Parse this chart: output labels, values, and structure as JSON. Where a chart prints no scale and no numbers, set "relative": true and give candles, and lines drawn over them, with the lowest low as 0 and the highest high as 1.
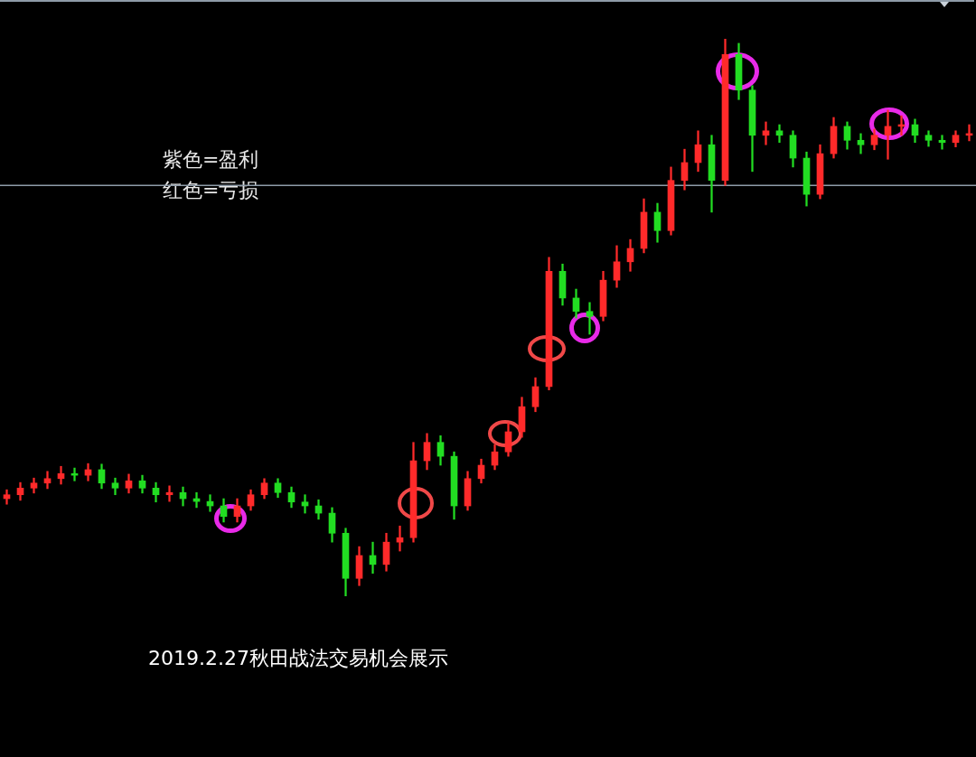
{
  "chart_data": {
    "type": "candlestick",
    "relative": true,
    "categories": [
      null,
      null,
      null,
      null,
      null,
      null,
      null,
      null,
      null,
      null,
      null,
      null,
      null,
      null,
      null,
      null,
      null,
      null,
      null,
      null,
      null,
      null,
      null,
      null,
      null,
      null,
      null,
      null,
      null,
      null,
      null,
      null,
      null,
      null,
      null,
      null,
      null,
      null,
      null,
      null,
      null,
      null,
      null,
      null,
      null,
      null,
      null,
      null,
      null,
      null,
      null,
      null,
      null,
      null,
      null,
      null,
      null,
      null,
      null,
      null,
      null,
      null,
      null,
      null,
      null,
      null,
      null,
      null,
      null,
      null,
      null,
      null
    ],
    "ohlc": [
      [
        0.175,
        0.191,
        0.165,
        0.182
      ],
      [
        0.182,
        0.204,
        0.172,
        0.194
      ],
      [
        0.194,
        0.212,
        0.185,
        0.203
      ],
      [
        0.203,
        0.224,
        0.193,
        0.211
      ],
      [
        0.211,
        0.233,
        0.201,
        0.22
      ],
      [
        0.22,
        0.23,
        0.207,
        0.217
      ],
      [
        0.217,
        0.238,
        0.207,
        0.227
      ],
      [
        0.227,
        0.237,
        0.193,
        0.203
      ],
      [
        0.203,
        0.212,
        0.182,
        0.194
      ],
      [
        0.194,
        0.219,
        0.185,
        0.207
      ],
      [
        0.207,
        0.217,
        0.185,
        0.194
      ],
      [
        0.194,
        0.204,
        0.169,
        0.182
      ],
      [
        0.182,
        0.198,
        0.17,
        0.186
      ],
      [
        0.186,
        0.196,
        0.162,
        0.175
      ],
      [
        0.175,
        0.186,
        0.159,
        0.17
      ],
      [
        0.17,
        0.182,
        0.152,
        0.162
      ],
      [
        0.162,
        0.175,
        0.133,
        0.143
      ],
      [
        0.143,
        0.175,
        0.133,
        0.162
      ],
      [
        0.162,
        0.191,
        0.154,
        0.182
      ],
      [
        0.182,
        0.211,
        0.175,
        0.203
      ],
      [
        0.203,
        0.211,
        0.177,
        0.186
      ],
      [
        0.186,
        0.196,
        0.159,
        0.169
      ],
      [
        0.169,
        0.182,
        0.149,
        0.162
      ],
      [
        0.162,
        0.173,
        0.138,
        0.149
      ],
      [
        0.149,
        0.159,
        0.097,
        0.113
      ],
      [
        0.113,
        0.122,
        0.0,
        0.032
      ],
      [
        0.032,
        0.089,
        0.019,
        0.073
      ],
      [
        0.073,
        0.097,
        0.041,
        0.057
      ],
      [
        0.057,
        0.113,
        0.045,
        0.097
      ],
      [
        0.097,
        0.126,
        0.081,
        0.105
      ],
      [
        0.105,
        0.276,
        0.097,
        0.243
      ],
      [
        0.243,
        0.292,
        0.227,
        0.276
      ],
      [
        0.276,
        0.288,
        0.235,
        0.251
      ],
      [
        0.251,
        0.259,
        0.138,
        0.162
      ],
      [
        0.162,
        0.224,
        0.154,
        0.211
      ],
      [
        0.211,
        0.246,
        0.203,
        0.235
      ],
      [
        0.235,
        0.272,
        0.227,
        0.259
      ],
      [
        0.259,
        0.311,
        0.251,
        0.295
      ],
      [
        0.295,
        0.357,
        0.285,
        0.34
      ],
      [
        0.34,
        0.392,
        0.331,
        0.376
      ],
      [
        0.376,
        0.608,
        0.37,
        0.583
      ],
      [
        0.583,
        0.596,
        0.522,
        0.535
      ],
      [
        0.535,
        0.551,
        0.499,
        0.511
      ],
      [
        0.511,
        0.527,
        0.47,
        0.502
      ],
      [
        0.502,
        0.583,
        0.494,
        0.567
      ],
      [
        0.567,
        0.629,
        0.554,
        0.6
      ],
      [
        0.6,
        0.64,
        0.583,
        0.624
      ],
      [
        0.624,
        0.713,
        0.616,
        0.689
      ],
      [
        0.689,
        0.705,
        0.635,
        0.656
      ],
      [
        0.656,
        0.77,
        0.648,
        0.746
      ],
      [
        0.746,
        0.802,
        0.729,
        0.778
      ],
      [
        0.778,
        0.835,
        0.762,
        0.81
      ],
      [
        0.81,
        0.827,
        0.689,
        0.746
      ],
      [
        0.746,
        1.0,
        0.737,
        0.972
      ],
      [
        0.972,
        0.992,
        0.891,
        0.908
      ],
      [
        0.908,
        0.916,
        0.762,
        0.827
      ],
      [
        0.827,
        0.851,
        0.81,
        0.835
      ],
      [
        0.835,
        0.846,
        0.814,
        0.827
      ],
      [
        0.827,
        0.835,
        0.77,
        0.786
      ],
      [
        0.786,
        0.797,
        0.7,
        0.721
      ],
      [
        0.721,
        0.81,
        0.713,
        0.794
      ],
      [
        0.794,
        0.859,
        0.786,
        0.843
      ],
      [
        0.843,
        0.851,
        0.802,
        0.818
      ],
      [
        0.818,
        0.83,
        0.794,
        0.81
      ],
      [
        0.81,
        0.838,
        0.801,
        0.827
      ],
      [
        0.827,
        0.872,
        0.784,
        0.843
      ],
      [
        0.843,
        0.862,
        0.827,
        0.846
      ],
      [
        0.846,
        0.856,
        0.814,
        0.827
      ],
      [
        0.827,
        0.835,
        0.807,
        0.818
      ],
      [
        0.818,
        0.827,
        0.802,
        0.814
      ],
      [
        0.814,
        0.835,
        0.806,
        0.827
      ],
      [
        0.827,
        0.846,
        0.817,
        0.83
      ]
    ],
    "colors": [
      "#ff2a2a",
      "#ff2a2a",
      "#ff2a2a",
      "#ff2a2a",
      "#ff2a2a",
      "#22dd22",
      "#ff2a2a",
      "#22dd22",
      "#22dd22",
      "#ff2a2a",
      "#22dd22",
      "#22dd22",
      "#ff2a2a",
      "#22dd22",
      "#22dd22",
      "#22dd22",
      "#22dd22",
      "#ff2a2a",
      "#ff2a2a",
      "#ff2a2a",
      "#22dd22",
      "#22dd22",
      "#22dd22",
      "#22dd22",
      "#22dd22",
      "#22dd22",
      "#ff2a2a",
      "#22dd22",
      "#ff2a2a",
      "#ff2a2a",
      "#ff2a2a",
      "#ff2a2a",
      "#22dd22",
      "#22dd22",
      "#ff2a2a",
      "#ff2a2a",
      "#ff2a2a",
      "#ff2a2a",
      "#ff2a2a",
      "#ff2a2a",
      "#ff2a2a",
      "#22dd22",
      "#22dd22",
      "#22dd22",
      "#ff2a2a",
      "#ff2a2a",
      "#ff2a2a",
      "#ff2a2a",
      "#22dd22",
      "#ff2a2a",
      "#ff2a2a",
      "#ff2a2a",
      "#22dd22",
      "#ff2a2a",
      "#22dd22",
      "#22dd22",
      "#ff2a2a",
      "#22dd22",
      "#22dd22",
      "#22dd22",
      "#ff2a2a",
      "#ff2a2a",
      "#22dd22",
      "#22dd22",
      "#ff2a2a",
      "#ff2a2a",
      "#ff2a2a",
      "#22dd22",
      "#22dd22",
      "#22dd22",
      "#ff2a2a",
      "#ff2a2a"
    ],
    "ref_lines": [
      {
        "axis": "y",
        "value": 0.737,
        "color": "#8e9ba8"
      }
    ],
    "annotations": [
      "紫色=盈利",
      "红色=亏损",
      "2019.2.27秋田战法交易机会展示"
    ]
  }
}
